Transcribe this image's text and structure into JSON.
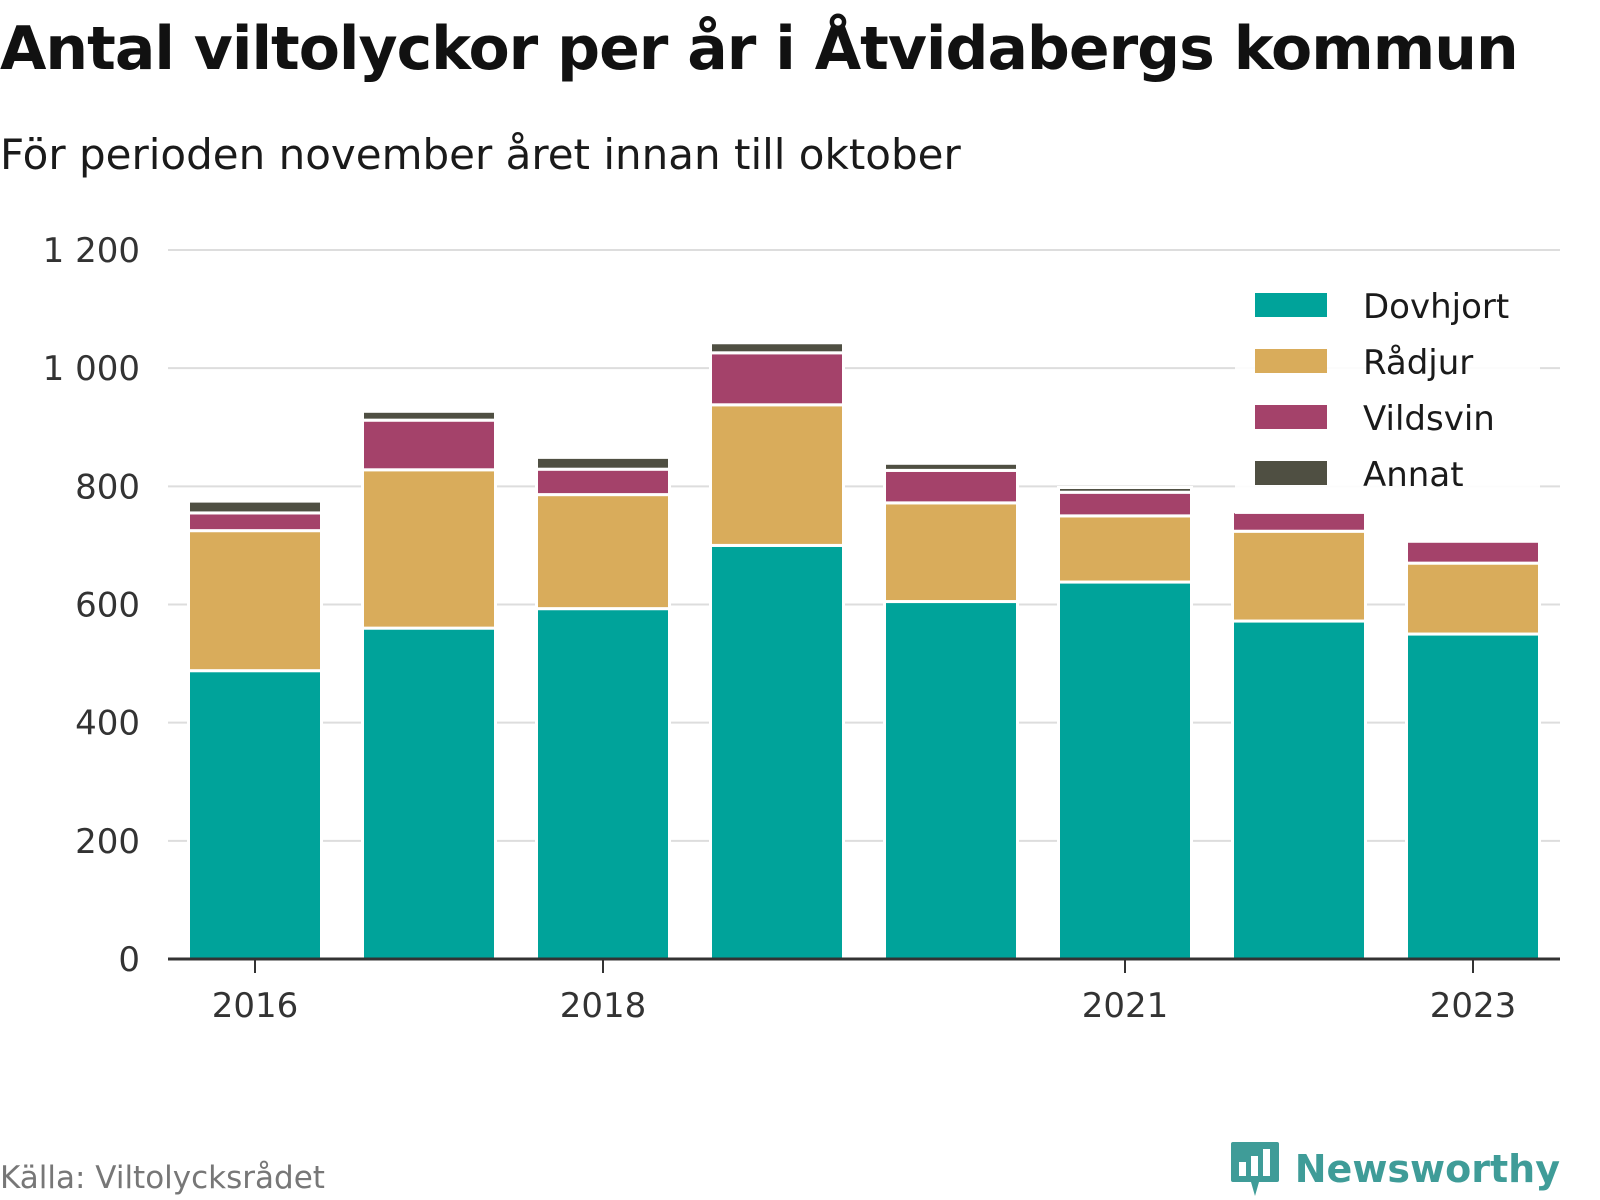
{
  "title": "Antal viltolyckor per år i Åtvidabergs kommun",
  "subtitle": "För perioden november året innan till oktober",
  "source": "Källa: Viltolycksrådet",
  "brand": "Newsworthy",
  "brand_icon": "newsworthy-logo-icon",
  "colors": {
    "Dovhjort": "#00a39a",
    "Rådjur": "#d9ac5b",
    "Vildsvin": "#a4426a",
    "Annat": "#4f4f42",
    "grid": "#dddddd",
    "axis": "#333333",
    "brand": "#3f9c98"
  },
  "chart_data": {
    "type": "bar",
    "stacked": true,
    "categories": [
      "2016",
      "2017",
      "2018",
      "2019",
      "2020",
      "2021",
      "2022",
      "2023"
    ],
    "x_tick_labels": [
      "2016",
      "2018",
      "2021",
      "2023"
    ],
    "series": [
      {
        "name": "Dovhjort",
        "values": [
          488,
          560,
          593,
          700,
          605,
          638,
          572,
          550
        ]
      },
      {
        "name": "Rådjur",
        "values": [
          237,
          268,
          193,
          238,
          167,
          112,
          152,
          120
        ]
      },
      {
        "name": "Vildsvin",
        "values": [
          30,
          84,
          43,
          88,
          55,
          40,
          33,
          37
        ]
      },
      {
        "name": "Annat",
        "values": [
          20,
          15,
          20,
          17,
          12,
          8,
          0,
          0
        ]
      }
    ],
    "ylim": [
      0,
      1200
    ],
    "y_ticks": [
      0,
      200,
      400,
      600,
      800,
      1000,
      1200
    ],
    "y_tick_labels": [
      "0",
      "200",
      "400",
      "600",
      "800",
      "1 000",
      "1 200"
    ],
    "grid": true,
    "legend_position": "top-right"
  }
}
